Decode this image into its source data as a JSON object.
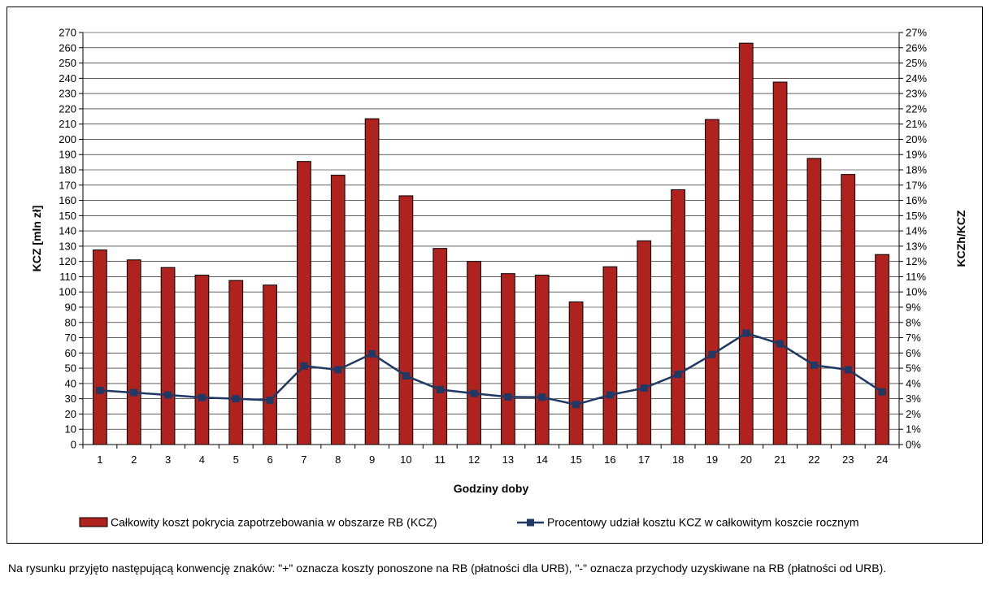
{
  "chart_data": {
    "type": "bar",
    "xlabel": "Godziny doby",
    "ylabel": "KCZ [mln zł]",
    "y2label": "KCZh/KCZ",
    "ylim": [
      0,
      270
    ],
    "y2lim": [
      0,
      27
    ],
    "grid": true,
    "legend_position": "bottom",
    "categories": [
      "1",
      "2",
      "3",
      "4",
      "5",
      "6",
      "7",
      "8",
      "9",
      "10",
      "11",
      "12",
      "13",
      "14",
      "15",
      "16",
      "17",
      "18",
      "19",
      "20",
      "21",
      "22",
      "23",
      "24"
    ],
    "y_ticks": [
      "0",
      "10",
      "20",
      "30",
      "40",
      "50",
      "60",
      "70",
      "80",
      "90",
      "100",
      "110",
      "120",
      "130",
      "140",
      "150",
      "160",
      "170",
      "180",
      "190",
      "200",
      "210",
      "220",
      "230",
      "240",
      "250",
      "260",
      "270"
    ],
    "y2_ticks": [
      "0%",
      "1%",
      "2%",
      "3%",
      "4%",
      "5%",
      "6%",
      "7%",
      "8%",
      "9%",
      "10%",
      "11%",
      "12%",
      "13%",
      "14%",
      "15%",
      "16%",
      "17%",
      "18%",
      "19%",
      "20%",
      "21%",
      "22%",
      "23%",
      "24%",
      "25%",
      "26%",
      "27%"
    ],
    "series": [
      {
        "name": "Całkowity koszt pokrycia zapotrzebowania w obszarze RB (KCZ)",
        "type": "bar",
        "axis": "left",
        "color": "#b0221e",
        "values": [
          127.5,
          121,
          116,
          111,
          107.5,
          104.5,
          185.5,
          176.5,
          213.5,
          163,
          128.5,
          120,
          112,
          111,
          93.5,
          116.5,
          133.5,
          167,
          213,
          263,
          237.5,
          187.5,
          177,
          124.5
        ]
      },
      {
        "name": "Procentowy udział kosztu KCZ w całkowitym koszcie rocznym",
        "type": "line",
        "axis": "right",
        "color": "#1f3864",
        "values": [
          3.55,
          3.4,
          3.25,
          3.08,
          3.0,
          2.9,
          5.15,
          4.9,
          5.95,
          4.5,
          3.6,
          3.35,
          3.12,
          3.1,
          2.62,
          3.25,
          3.7,
          4.6,
          5.9,
          7.3,
          6.6,
          5.2,
          4.9,
          3.45
        ]
      }
    ]
  },
  "footnote": "Na rysunku przyjęto następującą konwencję znaków: \"+\" oznacza koszty ponoszone na RB (płatności dla URB), \"-\" oznacza przychody uzyskiwane na RB (płatności od URB)."
}
